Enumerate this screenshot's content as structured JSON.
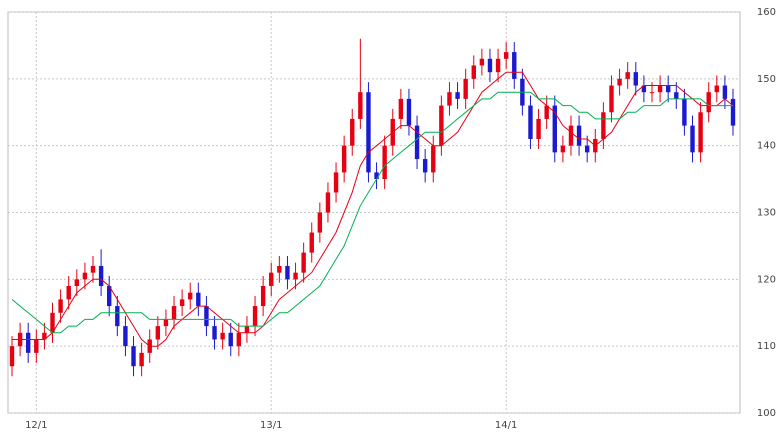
{
  "chart_data": {
    "type": "candlestick",
    "categories": [
      null,
      null,
      null,
      "12/1",
      null,
      null,
      null,
      null,
      null,
      null,
      null,
      null,
      null,
      null,
      null,
      null,
      null,
      null,
      null,
      null,
      null,
      null,
      null,
      null,
      null,
      null,
      null,
      null,
      null,
      null,
      null,
      null,
      "13/1",
      null,
      null,
      null,
      null,
      null,
      null,
      null,
      null,
      null,
      null,
      null,
      null,
      null,
      null,
      null,
      null,
      null,
      null,
      null,
      null,
      null,
      null,
      null,
      null,
      null,
      null,
      null,
      null,
      "14/1",
      null,
      null,
      null,
      null,
      null,
      null,
      null,
      null,
      null,
      null,
      null,
      null,
      null,
      null,
      null,
      null,
      null,
      null,
      null,
      null,
      null,
      null,
      null,
      null,
      null,
      null,
      null,
      null
    ],
    "open": [
      107,
      110,
      112,
      109,
      111,
      112,
      115,
      117,
      119,
      120,
      121,
      122,
      119,
      116,
      113,
      110,
      107,
      109,
      111,
      113,
      114,
      116,
      117,
      118,
      116,
      113,
      111,
      112,
      110,
      112,
      113,
      116,
      119,
      121,
      122,
      120,
      121,
      124,
      127,
      130,
      133,
      136,
      140,
      144,
      148,
      136,
      135,
      140,
      144,
      147,
      143,
      138,
      136,
      140,
      146,
      148,
      147,
      150,
      152,
      153,
      151,
      153,
      154,
      150,
      146,
      141,
      144,
      146,
      139,
      140,
      143,
      140,
      139,
      141,
      145,
      149,
      150,
      151,
      149,
      148,
      148,
      149,
      148,
      147,
      143,
      139,
      145,
      148,
      149,
      147
    ],
    "high": [
      111.5,
      113.5,
      113.5,
      112.5,
      113.5,
      116.5,
      118.5,
      120.5,
      121.5,
      122.5,
      123.5,
      124.5,
      120.5,
      117.5,
      114.5,
      111.5,
      110.5,
      112.5,
      114.5,
      115.5,
      117.5,
      118.5,
      119.5,
      119.5,
      117.5,
      114.5,
      113.5,
      113.5,
      113.5,
      114.5,
      117.5,
      120.5,
      122.5,
      123.5,
      123.5,
      122.5,
      125.5,
      128.5,
      131.5,
      134.5,
      137.5,
      141.5,
      145.5,
      156,
      149.5,
      137.5,
      141.5,
      145.5,
      148.5,
      148.5,
      144.5,
      139.5,
      141.5,
      147.5,
      149.5,
      149.5,
      151.5,
      153.5,
      154.5,
      154.5,
      154.5,
      155.5,
      155.5,
      151.5,
      147.5,
      145.5,
      147.5,
      147.5,
      141.5,
      144.5,
      144.5,
      141.5,
      142.5,
      146.5,
      150.5,
      151.5,
      152.5,
      152.5,
      150.5,
      149.5,
      150.5,
      150.5,
      149.5,
      148.5,
      144.5,
      146.5,
      149.5,
      150.5,
      150.5,
      148.5
    ],
    "low": [
      105.5,
      108.5,
      107.5,
      107.5,
      109.5,
      110.5,
      113.5,
      115.5,
      117.5,
      118.5,
      119.5,
      117.5,
      114.5,
      111.5,
      108.5,
      105.5,
      105.5,
      107.5,
      109.5,
      111.5,
      112.5,
      114.5,
      115.5,
      114.5,
      111.5,
      109.5,
      109.5,
      108.5,
      108.5,
      110.5,
      111.5,
      114.5,
      117.5,
      119.5,
      118.5,
      118.5,
      119.5,
      122.5,
      125.5,
      128.5,
      131.5,
      134.5,
      138.5,
      142.5,
      134.5,
      133.5,
      133.5,
      138.5,
      142.5,
      141.5,
      136.5,
      134.5,
      134.5,
      138.5,
      144.5,
      145.5,
      145.5,
      148.5,
      150.5,
      149.5,
      149.5,
      151.5,
      148.5,
      144.5,
      139.5,
      139.5,
      142.5,
      137.5,
      137.5,
      138.5,
      138.5,
      137.5,
      137.5,
      139.5,
      143.5,
      147.5,
      148.5,
      147.5,
      146.5,
      146.5,
      146.5,
      146.5,
      145.5,
      141.5,
      137.5,
      137.5,
      143.5,
      146.5,
      145.5,
      141.5
    ],
    "close": [
      110,
      112,
      109,
      111,
      112,
      115,
      117,
      119,
      120,
      121,
      122,
      119,
      116,
      113,
      110,
      107,
      109,
      111,
      113,
      114,
      116,
      117,
      118,
      116,
      113,
      111,
      112,
      110,
      112,
      113,
      116,
      119,
      121,
      122,
      120,
      121,
      124,
      127,
      130,
      133,
      136,
      140,
      144,
      148,
      136,
      135,
      140,
      144,
      147,
      143,
      138,
      136,
      140,
      146,
      148,
      147,
      150,
      152,
      153,
      151,
      153,
      154,
      150,
      146,
      141,
      144,
      146,
      139,
      140,
      143,
      140,
      139,
      141,
      145,
      149,
      150,
      151,
      149,
      148,
      148,
      149,
      148,
      147,
      143,
      139,
      145,
      148,
      149,
      147,
      143
    ],
    "up_color": "#e60012",
    "down_color": "#1a1ad0",
    "series": [
      {
        "color": "#e60012",
        "values": [
          111,
          111,
          111,
          111,
          111,
          112,
          114,
          116,
          118,
          119,
          120,
          120,
          119,
          117,
          115,
          113,
          111,
          110,
          110,
          111,
          113,
          114,
          115,
          116,
          116,
          115,
          114,
          113,
          112,
          112,
          112,
          113,
          115,
          117,
          118,
          119,
          120,
          121,
          123,
          125,
          127,
          130,
          133,
          137,
          139,
          140,
          141,
          142,
          143,
          143,
          142,
          141,
          140,
          140,
          141,
          142,
          144,
          146,
          148,
          149,
          150,
          151,
          151,
          151,
          149,
          147,
          146,
          145,
          143,
          142,
          141,
          141,
          140,
          141,
          142,
          144,
          146,
          148,
          149,
          149,
          149,
          149,
          149,
          148,
          147,
          146,
          146,
          146,
          147,
          146
        ]
      },
      {
        "color": "#00b050",
        "values": [
          117,
          116,
          115,
          114,
          113,
          112,
          112,
          113,
          113,
          114,
          114,
          115,
          115,
          115,
          115,
          115,
          115,
          114,
          114,
          114,
          114,
          114,
          114,
          114,
          114,
          114,
          114,
          114,
          113,
          113,
          113,
          113,
          114,
          115,
          115,
          116,
          117,
          118,
          119,
          121,
          123,
          125,
          128,
          131,
          133,
          135,
          137,
          138,
          139,
          140,
          141,
          142,
          142,
          142,
          143,
          144,
          145,
          146,
          147,
          147,
          148,
          148,
          148,
          148,
          148,
          147,
          147,
          147,
          146,
          146,
          145,
          145,
          144,
          144,
          144,
          144,
          145,
          145,
          146,
          146,
          146,
          147,
          147,
          147,
          147,
          147,
          146,
          146,
          146,
          146
        ]
      }
    ],
    "ylim": [
      100,
      160
    ],
    "yticks": [
      100,
      110,
      120,
      130,
      140,
      150,
      160
    ],
    "grid": true
  }
}
